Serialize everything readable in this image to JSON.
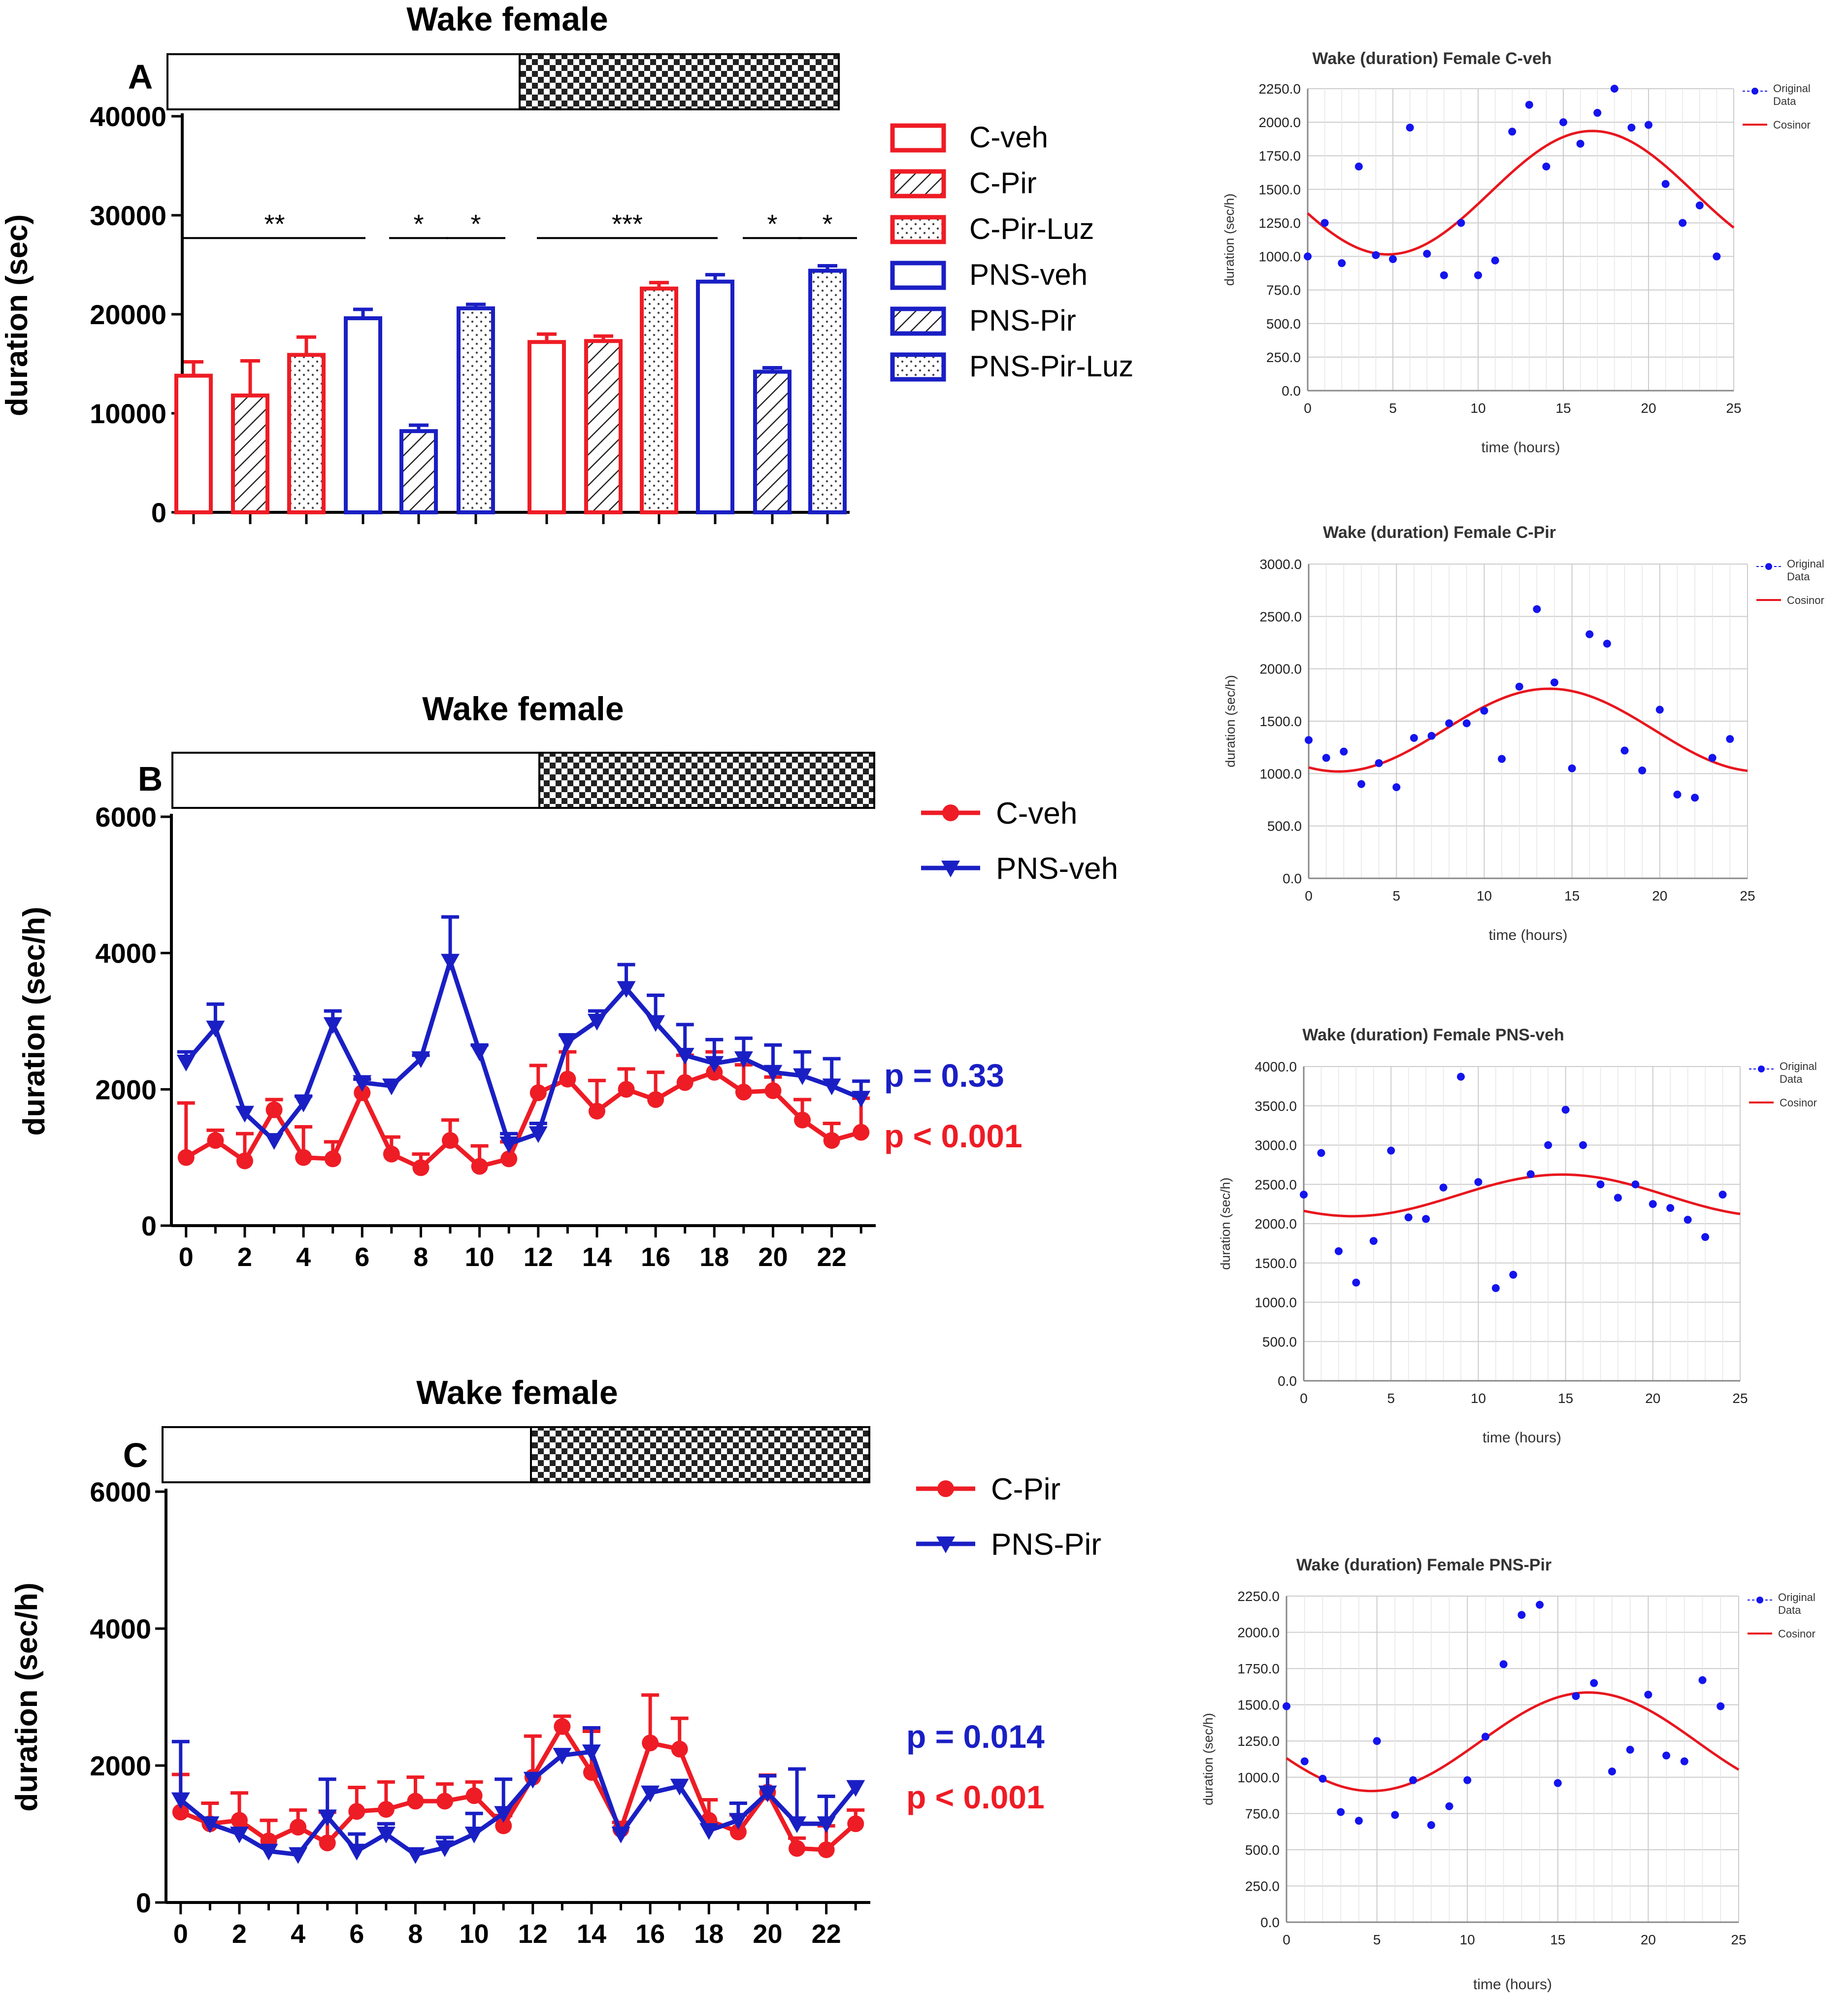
{
  "colors": {
    "red": "#ee1c25",
    "blue": "#1a1fc4",
    "cosinor_red": "#e8161e",
    "dots_blue": "#1414ee",
    "grid": "#cccccc",
    "black": "#000000"
  },
  "chart_data": [
    {
      "id": "A",
      "type": "bar",
      "panel_label": "A",
      "title": "Wake female",
      "ylabel": "duration (sec)",
      "ylim": [
        0,
        40000
      ],
      "yticks": [
        "0",
        "10000",
        "20000",
        "30000",
        "40000"
      ],
      "ytick_values": [
        0,
        10000,
        20000,
        30000,
        40000
      ],
      "light_dark_bar": "light 12h / dark 12h",
      "groups": [
        "light",
        "dark"
      ],
      "series": [
        {
          "name": "C-veh",
          "color": "red",
          "pattern": "none",
          "values": [
            13800,
            17200
          ],
          "errors": [
            1400,
            800
          ]
        },
        {
          "name": "C-Pir",
          "color": "red",
          "pattern": "hatch",
          "values": [
            11800,
            17300
          ],
          "errors": [
            3500,
            500
          ]
        },
        {
          "name": "C-Pir-Luz",
          "color": "red",
          "pattern": "dots",
          "values": [
            15900,
            22600
          ],
          "errors": [
            1800,
            600
          ]
        },
        {
          "name": "PNS-veh",
          "color": "blue",
          "pattern": "none",
          "values": [
            19600,
            23300
          ],
          "errors": [
            900,
            700
          ]
        },
        {
          "name": "PNS-Pir",
          "color": "blue",
          "pattern": "hatch",
          "values": [
            8200,
            14200
          ],
          "errors": [
            600,
            400
          ]
        },
        {
          "name": "PNS-Pir-Luz",
          "color": "blue",
          "pattern": "dots",
          "values": [
            20600,
            24400
          ],
          "errors": [
            400,
            500
          ]
        }
      ],
      "significance": [
        {
          "label": "**",
          "from_bar": 0,
          "to_bar": 3
        },
        {
          "label": "*",
          "from_bar": 4,
          "to_bar": 4
        },
        {
          "label": "*",
          "from_bar": 5,
          "to_bar": 5
        },
        {
          "label": "***",
          "from_bar": 6,
          "to_bar": 9
        },
        {
          "label": "*",
          "from_bar": 10,
          "to_bar": 10
        },
        {
          "label": "*",
          "from_bar": 11,
          "to_bar": 11
        }
      ]
    },
    {
      "id": "B",
      "type": "line",
      "panel_label": "B",
      "title": "Wake female",
      "ylabel": "duration (sec/h)",
      "ylim": [
        0,
        6000
      ],
      "yticks": [
        "0",
        "2000",
        "4000",
        "6000"
      ],
      "ytick_values": [
        0,
        2000,
        4000,
        6000
      ],
      "xticks": [
        "0",
        "2",
        "4",
        "6",
        "8",
        "10",
        "12",
        "14",
        "16",
        "18",
        "20",
        "22"
      ],
      "xlim": [
        -0.5,
        23.5
      ],
      "series": [
        {
          "name": "C-veh",
          "color": "red",
          "marker": "circle",
          "x": [
            0,
            1,
            2,
            3,
            4,
            5,
            6,
            7,
            8,
            9,
            10,
            11,
            12,
            13,
            14,
            15,
            16,
            17,
            18,
            19,
            20,
            21,
            22,
            23
          ],
          "values": [
            1000,
            1250,
            950,
            1700,
            1000,
            980,
            1950,
            1050,
            850,
            1250,
            870,
            980,
            1950,
            2150,
            1680,
            2000,
            1850,
            2100,
            2250,
            1960,
            1980,
            1550,
            1250,
            1370
          ],
          "errors": [
            800,
            150,
            400,
            150,
            450,
            250,
            200,
            250,
            200,
            300,
            300,
            250,
            400,
            400,
            450,
            300,
            400,
            400,
            300,
            400,
            200,
            300,
            250,
            500
          ]
        },
        {
          "name": "PNS-veh",
          "color": "blue",
          "marker": "triangle-down",
          "x": [
            0,
            1,
            2,
            3,
            4,
            5,
            6,
            7,
            8,
            9,
            10,
            11,
            12,
            13,
            14,
            15,
            16,
            17,
            18,
            19,
            20,
            21,
            22,
            23
          ],
          "values": [
            2400,
            2900,
            1650,
            1250,
            1800,
            2950,
            2100,
            2050,
            2450,
            3880,
            2550,
            1200,
            1350,
            2700,
            3000,
            3480,
            2980,
            2500,
            2380,
            2450,
            2250,
            2200,
            2050,
            1870
          ],
          "errors": [
            150,
            350,
            0,
            0,
            100,
            200,
            50,
            0,
            50,
            650,
            100,
            150,
            150,
            100,
            150,
            350,
            400,
            450,
            350,
            300,
            400,
            350,
            400,
            250
          ]
        }
      ],
      "annotations": [
        {
          "text": "p = 0.33",
          "color": "blue"
        },
        {
          "text": "p < 0.001",
          "color": "red"
        }
      ]
    },
    {
      "id": "C",
      "type": "line",
      "panel_label": "C",
      "title": "Wake female",
      "ylabel": "duration (sec/h)",
      "ylim": [
        0,
        6000
      ],
      "yticks": [
        "0",
        "2000",
        "4000",
        "6000"
      ],
      "ytick_values": [
        0,
        2000,
        4000,
        6000
      ],
      "xticks": [
        "0",
        "2",
        "4",
        "6",
        "8",
        "10",
        "12",
        "14",
        "16",
        "18",
        "20",
        "22"
      ],
      "xlim": [
        -0.5,
        23.5
      ],
      "series": [
        {
          "name": "C-Pir",
          "color": "red",
          "marker": "circle",
          "x": [
            0,
            1,
            2,
            3,
            4,
            5,
            6,
            7,
            8,
            9,
            10,
            11,
            12,
            13,
            14,
            15,
            16,
            17,
            18,
            19,
            20,
            21,
            22,
            23
          ],
          "values": [
            1320,
            1150,
            1200,
            900,
            1100,
            870,
            1330,
            1360,
            1480,
            1480,
            1560,
            1120,
            1830,
            2570,
            1900,
            1070,
            2330,
            2240,
            1200,
            1030,
            1610,
            790,
            770,
            1150
          ],
          "errors": [
            550,
            300,
            400,
            300,
            250,
            450,
            350,
            400,
            350,
            250,
            200,
            150,
            600,
            150,
            600,
            100,
            700,
            450,
            300,
            250,
            250,
            150,
            350,
            200
          ]
        },
        {
          "name": "PNS-Pir",
          "color": "blue",
          "marker": "triangle-down",
          "x": [
            0,
            1,
            2,
            3,
            4,
            5,
            6,
            7,
            8,
            9,
            10,
            11,
            12,
            13,
            14,
            15,
            16,
            17,
            18,
            19,
            20,
            21,
            22,
            23
          ],
          "values": [
            1500,
            1150,
            1000,
            750,
            700,
            1250,
            750,
            1000,
            700,
            800,
            1000,
            1300,
            1800,
            2150,
            2200,
            1000,
            1600,
            1700,
            1050,
            1200,
            1600,
            1150,
            1150,
            1680
          ],
          "errors": [
            850,
            0,
            0,
            0,
            0,
            550,
            250,
            150,
            0,
            150,
            300,
            500,
            0,
            0,
            350,
            0,
            0,
            0,
            0,
            250,
            250,
            800,
            400,
            0
          ]
        }
      ],
      "annotations": [
        {
          "text": "p = 0.014",
          "color": "blue"
        },
        {
          "text": "p < 0.001",
          "color": "red"
        }
      ]
    },
    {
      "id": "R1",
      "type": "scatter",
      "title": "Wake (duration) Female C-veh",
      "xlabel": "time (hours)",
      "ylabel": "duration (sec/h)",
      "ylim": [
        0,
        2250
      ],
      "yticks": [
        "0.0",
        "250.0",
        "500.0",
        "750.0",
        "1000.0",
        "1250.0",
        "1500.0",
        "1750.0",
        "2000.0",
        "2250.0"
      ],
      "ytick_values": [
        0,
        250,
        500,
        750,
        1000,
        1250,
        1500,
        1750,
        2000,
        2250
      ],
      "xlim": [
        0,
        25
      ],
      "xticks": [
        "0",
        "5",
        "10",
        "15",
        "20",
        "25"
      ],
      "xtick_values": [
        0,
        5,
        10,
        15,
        20,
        25
      ],
      "legend": [
        "Original Data",
        "Cosinor"
      ],
      "x": [
        0,
        1,
        2,
        3,
        4,
        5,
        6,
        7,
        8,
        9,
        10,
        11,
        12,
        13,
        14,
        15,
        16,
        17,
        18,
        19,
        20,
        21,
        22,
        23,
        24
      ],
      "values": [
        1000,
        1250,
        950,
        1670,
        1010,
        980,
        1960,
        1020,
        860,
        1250,
        860,
        970,
        1930,
        2130,
        1670,
        2000,
        1840,
        2070,
        2250,
        1960,
        1980,
        1540,
        1250,
        1380,
        1000
      ],
      "cosinor": {
        "mesor": 1475,
        "amplitude": 460,
        "acrophase": 16.7
      }
    },
    {
      "id": "R2",
      "type": "scatter",
      "title": "Wake (duration) Female C-Pir",
      "xlabel": "time (hours)",
      "ylabel": "duration (sec/h)",
      "ylim": [
        0,
        3000
      ],
      "yticks": [
        "0.0",
        "500.0",
        "1000.0",
        "1500.0",
        "2000.0",
        "2500.0",
        "3000.0"
      ],
      "ytick_values": [
        0,
        500,
        1000,
        1500,
        2000,
        2500,
        3000
      ],
      "xlim": [
        0,
        25
      ],
      "xticks": [
        "0",
        "5",
        "10",
        "15",
        "20",
        "25"
      ],
      "xtick_values": [
        0,
        5,
        10,
        15,
        20,
        25
      ],
      "legend": [
        "Original Data",
        "Cosinor"
      ],
      "x": [
        0,
        1,
        2,
        3,
        4,
        5,
        6,
        7,
        8,
        9,
        10,
        11,
        12,
        13,
        14,
        15,
        16,
        17,
        18,
        19,
        20,
        21,
        22,
        23,
        24
      ],
      "values": [
        1320,
        1150,
        1210,
        900,
        1100,
        870,
        1340,
        1360,
        1480,
        1480,
        1600,
        1140,
        1830,
        2570,
        1870,
        1050,
        2330,
        2240,
        1220,
        1030,
        1610,
        800,
        770,
        1150,
        1330
      ],
      "cosinor": {
        "mesor": 1415,
        "amplitude": 395,
        "acrophase": 13.7
      }
    },
    {
      "id": "R3",
      "type": "scatter",
      "title": "Wake (duration) Female PNS-veh",
      "xlabel": "time (hours)",
      "ylabel": "duration (sec/h)",
      "ylim": [
        0,
        4000
      ],
      "yticks": [
        "0.0",
        "500.0",
        "1000.0",
        "1500.0",
        "2000.0",
        "2500.0",
        "3000.0",
        "3500.0",
        "4000.0"
      ],
      "ytick_values": [
        0,
        500,
        1000,
        1500,
        2000,
        2500,
        3000,
        3500,
        4000
      ],
      "xlim": [
        0,
        25
      ],
      "xticks": [
        "0",
        "5",
        "10",
        "15",
        "20",
        "25"
      ],
      "xtick_values": [
        0,
        5,
        10,
        15,
        20,
        25
      ],
      "legend": [
        "Original Data",
        "Cosinor"
      ],
      "x": [
        0,
        1,
        2,
        3,
        4,
        5,
        6,
        7,
        8,
        9,
        10,
        11,
        12,
        13,
        14,
        15,
        16,
        17,
        18,
        19,
        20,
        21,
        22,
        23,
        24
      ],
      "values": [
        2370,
        2900,
        1650,
        1250,
        1780,
        2930,
        2080,
        2060,
        2460,
        3870,
        2530,
        1180,
        1350,
        2630,
        3000,
        3450,
        3000,
        2500,
        2330,
        2500,
        2250,
        2200,
        2050,
        1830,
        2370
      ],
      "cosinor": {
        "mesor": 2360,
        "amplitude": 265,
        "acrophase": 14.8
      }
    },
    {
      "id": "R4",
      "type": "scatter",
      "title": "Wake (duration) Female PNS-Pir",
      "xlabel": "time (hours)",
      "ylabel": "duration (sec/h)",
      "ylim": [
        0,
        2250
      ],
      "yticks": [
        "0.0",
        "250.0",
        "500.0",
        "750.0",
        "1000.0",
        "1250.0",
        "1500.0",
        "1750.0",
        "2000.0",
        "2250.0"
      ],
      "ytick_values": [
        0,
        250,
        500,
        750,
        1000,
        1250,
        1500,
        1750,
        2000,
        2250
      ],
      "xlim": [
        0,
        25
      ],
      "xticks": [
        "0",
        "5",
        "10",
        "15",
        "20",
        "25"
      ],
      "xtick_values": [
        0,
        5,
        10,
        15,
        20,
        25
      ],
      "legend": [
        "Original Data",
        "Cosinor"
      ],
      "x": [
        0,
        1,
        2,
        3,
        4,
        5,
        6,
        7,
        8,
        9,
        10,
        11,
        12,
        13,
        14,
        15,
        16,
        17,
        18,
        19,
        20,
        21,
        22,
        23,
        24
      ],
      "values": [
        1490,
        1110,
        990,
        760,
        700,
        1250,
        740,
        980,
        670,
        800,
        980,
        1280,
        1780,
        2120,
        2190,
        960,
        1560,
        1650,
        1040,
        1190,
        1570,
        1150,
        1110,
        1670,
        1490
      ],
      "cosinor": {
        "mesor": 1245,
        "amplitude": 340,
        "acrophase": 16.7
      }
    }
  ]
}
